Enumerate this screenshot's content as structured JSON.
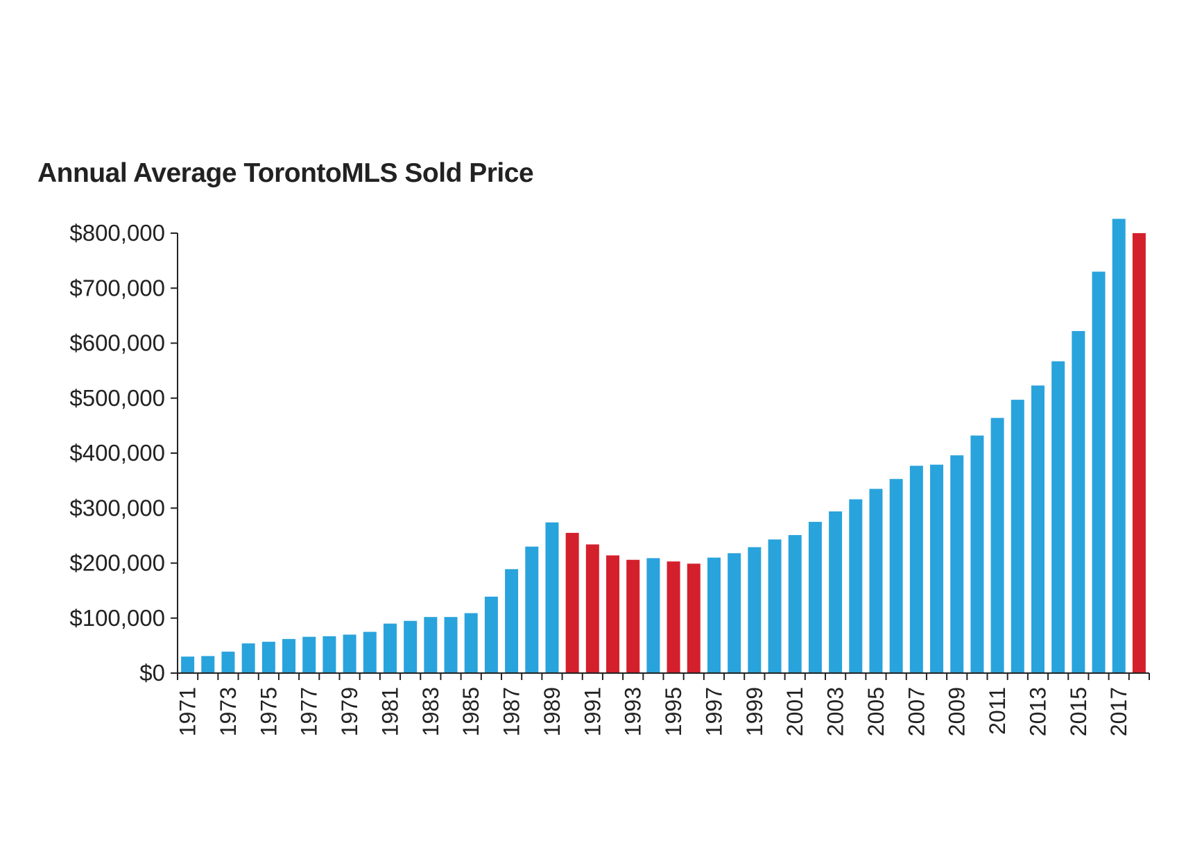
{
  "chart_data": {
    "type": "bar",
    "title": "Annual Average TorontoMLS Sold Price",
    "xlabel": "",
    "ylabel": "",
    "ylim": [
      0,
      800000
    ],
    "yticks": [
      0,
      100000,
      200000,
      300000,
      400000,
      500000,
      600000,
      700000,
      800000
    ],
    "ytick_labels": [
      "$0",
      "$100,000",
      "$200,000",
      "$300,000",
      "$400,000",
      "$500,000",
      "$600,000",
      "$700,000",
      "$800,000"
    ],
    "xtick_labels": [
      "1971",
      "1973",
      "1975",
      "1977",
      "1979",
      "1981",
      "1983",
      "1985",
      "1987",
      "1989",
      "1991",
      "1993",
      "1995",
      "1997",
      "1999",
      "2001",
      "2003",
      "2005",
      "2007",
      "2009",
      "2011",
      "2013",
      "2015",
      "2017"
    ],
    "categories": [
      "1971",
      "1972",
      "1973",
      "1974",
      "1975",
      "1976",
      "1977",
      "1978",
      "1979",
      "1980",
      "1981",
      "1982",
      "1983",
      "1984",
      "1985",
      "1986",
      "1987",
      "1988",
      "1989",
      "1990",
      "1991",
      "1992",
      "1993",
      "1994",
      "1995",
      "1996",
      "1997",
      "1998",
      "1999",
      "2000",
      "2001",
      "2002",
      "2003",
      "2004",
      "2005",
      "2006",
      "2007",
      "2008",
      "2009",
      "2010",
      "2011",
      "2012",
      "2013",
      "2014",
      "2015",
      "2016",
      "2017",
      "2018"
    ],
    "values": [
      30000,
      31000,
      39000,
      54000,
      57000,
      62000,
      66000,
      67000,
      70000,
      75000,
      90000,
      95000,
      102000,
      102000,
      109000,
      139000,
      189000,
      230000,
      274000,
      255000,
      234000,
      214000,
      206000,
      209000,
      203000,
      199000,
      210000,
      218000,
      229000,
      243000,
      251000,
      275000,
      294000,
      316000,
      335000,
      353000,
      377000,
      379000,
      396000,
      432000,
      464000,
      497000,
      523000,
      567000,
      622000,
      730000,
      826000,
      800000
    ],
    "bar_colors": [
      "#29a3dc",
      "#29a3dc",
      "#29a3dc",
      "#29a3dc",
      "#29a3dc",
      "#29a3dc",
      "#29a3dc",
      "#29a3dc",
      "#29a3dc",
      "#29a3dc",
      "#29a3dc",
      "#29a3dc",
      "#29a3dc",
      "#29a3dc",
      "#29a3dc",
      "#29a3dc",
      "#29a3dc",
      "#29a3dc",
      "#29a3dc",
      "#d4202c",
      "#d4202c",
      "#d4202c",
      "#d4202c",
      "#29a3dc",
      "#d4202c",
      "#d4202c",
      "#29a3dc",
      "#29a3dc",
      "#29a3dc",
      "#29a3dc",
      "#29a3dc",
      "#29a3dc",
      "#29a3dc",
      "#29a3dc",
      "#29a3dc",
      "#29a3dc",
      "#29a3dc",
      "#29a3dc",
      "#29a3dc",
      "#29a3dc",
      "#29a3dc",
      "#29a3dc",
      "#29a3dc",
      "#29a3dc",
      "#29a3dc",
      "#29a3dc",
      "#29a3dc",
      "#d4202c"
    ],
    "colors": {
      "rising": "#29a3dc",
      "falling": "#d4202c",
      "axis": "#222222"
    },
    "grid": false,
    "legend": "none"
  }
}
